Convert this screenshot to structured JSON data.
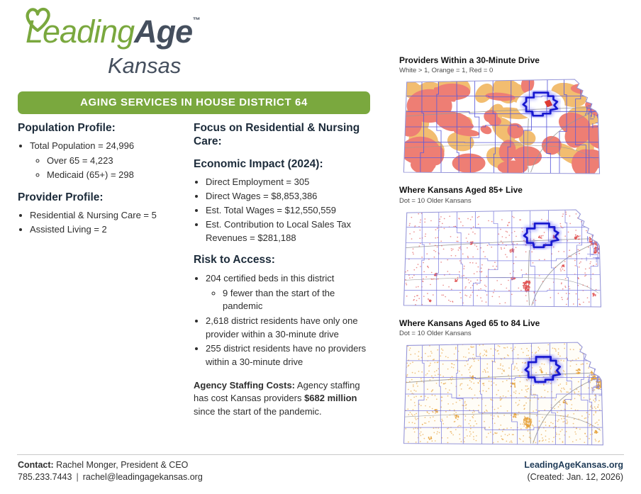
{
  "logo": {
    "leading": "Leading",
    "age": "Age",
    "tm": "™",
    "region": "Kansas"
  },
  "banner": {
    "text": "AGING SERVICES IN HOUSE DISTRICT 64"
  },
  "population": {
    "heading": "Population Profile:",
    "items": [
      {
        "text": "Total Population = 24,996",
        "sub": [
          "Over 65 = 4,223",
          "Medicaid (65+) = 298"
        ]
      }
    ]
  },
  "provider": {
    "heading": "Provider Profile:",
    "items": [
      {
        "text": "Residential & Nursing Care = 5"
      },
      {
        "text": "Assisted Living = 2"
      }
    ]
  },
  "focus_heading": "Focus on Residential & Nursing Care:",
  "economic": {
    "heading": "Economic Impact (2024):",
    "items": [
      {
        "text": "Direct Employment = 305"
      },
      {
        "text": "Direct Wages = $8,853,386"
      },
      {
        "text": "Est. Total Wages = $12,550,559"
      },
      {
        "text": "Est. Contribution to Local Sales Tax Revenues = $281,188"
      }
    ]
  },
  "risk": {
    "heading": "Risk to Access:",
    "items": [
      {
        "text": "204 certified beds in this district",
        "sub": [
          "9 fewer than the start of the pandemic"
        ]
      },
      {
        "text": "2,618 district residents have only one provider within a 30-minute drive"
      },
      {
        "text": "255 district residents have no providers within a 30-minute drive"
      }
    ]
  },
  "staffing": {
    "label": "Agency Staffing Costs:",
    "text1": " Agency staffing has cost Kansas providers ",
    "highlight": "$682 million",
    "text2": " since the start of the pandemic."
  },
  "maps": [
    {
      "title": "Providers Within a 30-Minute Drive",
      "subtitle": "White > 1, Orange = 1, Red = 0",
      "kind": "choropleth"
    },
    {
      "title": "Where Kansans Aged 85+ Live",
      "subtitle": "Dot = 10 Older Kansans",
      "kind": "dots-red"
    },
    {
      "title": "Where Kansans Aged 65 to 84 Live",
      "subtitle": "Dot = 10 Older Kansans",
      "kind": "dots-orange"
    }
  ],
  "footer": {
    "contact_label": "Contact:",
    "contact_name": " Rachel Monger, President & CEO",
    "phone": "785.233.7443",
    "separator": "|",
    "email": "rachel@leadingagekansas.org",
    "website": "LeadingAgeKansas.org",
    "created": "(Created: Jan. 12, 2026)"
  },
  "colors": {
    "brand_green": "#7aa83e",
    "heading_navy": "#1c2b3a",
    "map_red": "#ee7e74",
    "map_red_dark": "#e03b30",
    "map_orange": "#f2bd70",
    "dot_red": "#e05050",
    "dot_orange": "#e6a23c",
    "line_blue": "#5b5bdb",
    "line_blue_light": "#7d7de0",
    "district_blue": "#1818cf",
    "district_glow": "#3b3bff",
    "road_gray": "#9a9a9a",
    "outline_blue": "#9595d8"
  }
}
